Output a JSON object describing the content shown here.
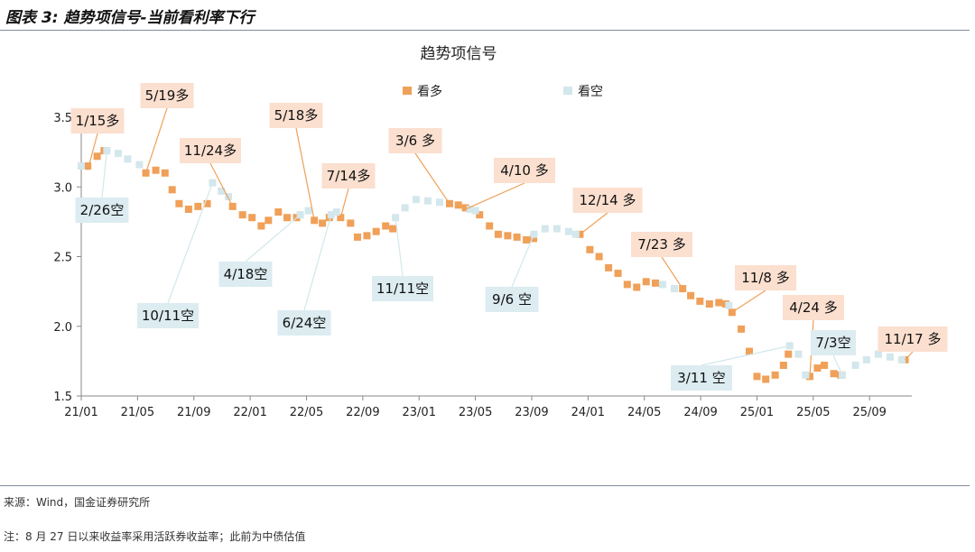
{
  "header": {
    "title": "图表 3: 趋势项信号-当前看利率下行"
  },
  "footer": {
    "source": "来源：Wind，国金证券研究所",
    "note": "注：8 月 27 日以来收益率采用活跃券收益率；此前为中债估值"
  },
  "colors": {
    "bull": "#f0a058",
    "bear": "#d3e7ec",
    "bull_label_bg": "#fbdfcf",
    "bear_label_bg": "#dcecf1",
    "axis": "#888888"
  },
  "chart_data": {
    "type": "scatter",
    "title": "趋势项信号",
    "legend": {
      "placement": "top",
      "items": [
        {
          "name": "看多",
          "color": "#f0a058"
        },
        {
          "name": "看空",
          "color": "#d3e7ec"
        }
      ]
    },
    "ylim": [
      1.5,
      3.5
    ],
    "y_ticks": [
      "1.5",
      "2.0",
      "2.5",
      "3.0",
      "3.5"
    ],
    "x_range": [
      "2021-01",
      "2025-12"
    ],
    "x_ticks": [
      "21/01",
      "21/05",
      "21/09",
      "22/01",
      "22/05",
      "22/09",
      "23/01",
      "23/05",
      "23/09",
      "24/01",
      "24/05",
      "24/09",
      "25/01",
      "25/05",
      "25/09"
    ],
    "series": [
      {
        "name": "看多",
        "points": [
          [
            "2021-01-15",
            3.15
          ],
          [
            "2021-02-05",
            3.22
          ],
          [
            "2021-02-20",
            3.26
          ],
          [
            "2021-05-19",
            3.1
          ],
          [
            "2021-06-10",
            3.12
          ],
          [
            "2021-06-30",
            3.1
          ],
          [
            "2021-07-15",
            2.98
          ],
          [
            "2021-07-30",
            2.88
          ],
          [
            "2021-08-20",
            2.84
          ],
          [
            "2021-09-10",
            2.86
          ],
          [
            "2021-09-30",
            2.88
          ],
          [
            "2021-11-24",
            2.86
          ],
          [
            "2021-12-15",
            2.8
          ],
          [
            "2022-01-05",
            2.78
          ],
          [
            "2022-01-25",
            2.72
          ],
          [
            "2022-02-10",
            2.76
          ],
          [
            "2022-03-01",
            2.82
          ],
          [
            "2022-03-20",
            2.78
          ],
          [
            "2022-04-10",
            2.78
          ],
          [
            "2022-05-18",
            2.76
          ],
          [
            "2022-06-05",
            2.74
          ],
          [
            "2022-06-20",
            2.78
          ],
          [
            "2022-07-14",
            2.78
          ],
          [
            "2022-08-05",
            2.74
          ],
          [
            "2022-08-20",
            2.64
          ],
          [
            "2022-09-10",
            2.65
          ],
          [
            "2022-09-30",
            2.68
          ],
          [
            "2022-10-20",
            2.72
          ],
          [
            "2022-11-05",
            2.7
          ],
          [
            "2023-03-06",
            2.88
          ],
          [
            "2023-03-25",
            2.87
          ],
          [
            "2023-04-10",
            2.85
          ],
          [
            "2023-05-10",
            2.8
          ],
          [
            "2023-06-01",
            2.72
          ],
          [
            "2023-06-20",
            2.66
          ],
          [
            "2023-07-10",
            2.65
          ],
          [
            "2023-07-30",
            2.64
          ],
          [
            "2023-08-20",
            2.62
          ],
          [
            "2023-09-05",
            2.63
          ],
          [
            "2023-12-14",
            2.66
          ],
          [
            "2024-01-05",
            2.55
          ],
          [
            "2024-01-25",
            2.5
          ],
          [
            "2024-02-15",
            2.42
          ],
          [
            "2024-03-05",
            2.38
          ],
          [
            "2024-03-25",
            2.3
          ],
          [
            "2024-04-15",
            2.28
          ],
          [
            "2024-05-05",
            2.32
          ],
          [
            "2024-05-25",
            2.31
          ],
          [
            "2024-07-23",
            2.27
          ],
          [
            "2024-08-10",
            2.22
          ],
          [
            "2024-08-30",
            2.18
          ],
          [
            "2024-09-20",
            2.16
          ],
          [
            "2024-10-10",
            2.17
          ],
          [
            "2024-10-25",
            2.16
          ],
          [
            "2024-11-08",
            2.1
          ],
          [
            "2024-11-28",
            1.98
          ],
          [
            "2024-12-15",
            1.82
          ],
          [
            "2025-01-01",
            1.64
          ],
          [
            "2025-01-20",
            1.62
          ],
          [
            "2025-02-10",
            1.65
          ],
          [
            "2025-02-28",
            1.72
          ],
          [
            "2025-03-08",
            1.8
          ],
          [
            "2025-04-24",
            1.64
          ],
          [
            "2025-05-10",
            1.7
          ],
          [
            "2025-05-25",
            1.72
          ],
          [
            "2025-06-15",
            1.66
          ],
          [
            "2025-06-30",
            1.65
          ],
          [
            "2025-11-17",
            1.76
          ]
        ]
      },
      {
        "name": "看空",
        "points": [
          [
            "2021-01-01",
            3.15
          ],
          [
            "2021-02-26",
            3.26
          ],
          [
            "2021-03-20",
            3.24
          ],
          [
            "2021-04-10",
            3.2
          ],
          [
            "2021-05-05",
            3.16
          ],
          [
            "2021-10-11",
            3.03
          ],
          [
            "2021-10-30",
            2.97
          ],
          [
            "2021-11-15",
            2.93
          ],
          [
            "2022-04-18",
            2.8
          ],
          [
            "2022-05-05",
            2.83
          ],
          [
            "2022-06-24",
            2.8
          ],
          [
            "2022-07-05",
            2.82
          ],
          [
            "2022-11-11",
            2.78
          ],
          [
            "2022-12-01",
            2.85
          ],
          [
            "2022-12-25",
            2.91
          ],
          [
            "2023-01-20",
            2.9
          ],
          [
            "2023-02-15",
            2.89
          ],
          [
            "2023-04-20",
            2.84
          ],
          [
            "2023-05-01",
            2.83
          ],
          [
            "2023-09-06",
            2.66
          ],
          [
            "2023-09-30",
            2.7
          ],
          [
            "2023-10-25",
            2.7
          ],
          [
            "2023-11-20",
            2.68
          ],
          [
            "2023-12-05",
            2.66
          ],
          [
            "2024-06-10",
            2.3
          ],
          [
            "2024-07-05",
            2.27
          ],
          [
            "2024-11-01",
            2.15
          ],
          [
            "2025-03-11",
            1.86
          ],
          [
            "2025-03-30",
            1.8
          ],
          [
            "2025-04-15",
            1.65
          ],
          [
            "2025-07-03",
            1.65
          ],
          [
            "2025-08-01",
            1.72
          ],
          [
            "2025-08-25",
            1.76
          ],
          [
            "2025-09-20",
            1.8
          ],
          [
            "2025-10-15",
            1.78
          ],
          [
            "2025-11-10",
            1.76
          ]
        ]
      }
    ],
    "annotations": [
      {
        "text": "1/15多",
        "signal": "看多",
        "date": "2021-01-15",
        "y": 3.12
      },
      {
        "text": "5/19多",
        "signal": "看多",
        "date": "2021-05-19",
        "y": 3.1
      },
      {
        "text": "11/24多",
        "signal": "看多",
        "date": "2021-11-24",
        "y": 2.86
      },
      {
        "text": "5/18多",
        "signal": "看多",
        "date": "2022-05-18",
        "y": 2.76
      },
      {
        "text": "7/14多",
        "signal": "看多",
        "date": "2022-07-14",
        "y": 2.78
      },
      {
        "text": "3/6 多",
        "signal": "看多",
        "date": "2023-03-06",
        "y": 2.88
      },
      {
        "text": "4/10 多",
        "signal": "看多",
        "date": "2023-04-10",
        "y": 2.84
      },
      {
        "text": "12/14 多",
        "signal": "看多",
        "date": "2023-12-14",
        "y": 2.66
      },
      {
        "text": "7/23 多",
        "signal": "看多",
        "date": "2024-07-23",
        "y": 2.27
      },
      {
        "text": "11/8 多",
        "signal": "看多",
        "date": "2024-11-08",
        "y": 2.1
      },
      {
        "text": "4/24 多",
        "signal": "看多",
        "date": "2025-04-24",
        "y": 1.64
      },
      {
        "text": "11/17 多",
        "signal": "看多",
        "date": "2025-11-17",
        "y": 1.76
      },
      {
        "text": "2/26空",
        "signal": "看空",
        "date": "2021-02-26",
        "y": 3.26
      },
      {
        "text": "10/11空",
        "signal": "看空",
        "date": "2021-10-11",
        "y": 3.03
      },
      {
        "text": "4/18空",
        "signal": "看空",
        "date": "2022-04-18",
        "y": 2.8
      },
      {
        "text": "6/24空",
        "signal": "看空",
        "date": "2022-06-24",
        "y": 2.8
      },
      {
        "text": "11/11空",
        "signal": "看空",
        "date": "2022-11-11",
        "y": 2.78
      },
      {
        "text": "9/6 空",
        "signal": "看空",
        "date": "2023-09-06",
        "y": 2.66
      },
      {
        "text": "3/11 空",
        "signal": "看空",
        "date": "2025-03-11",
        "y": 1.86
      },
      {
        "text": "7/3空",
        "signal": "看空",
        "date": "2025-07-03",
        "y": 1.65
      }
    ]
  }
}
